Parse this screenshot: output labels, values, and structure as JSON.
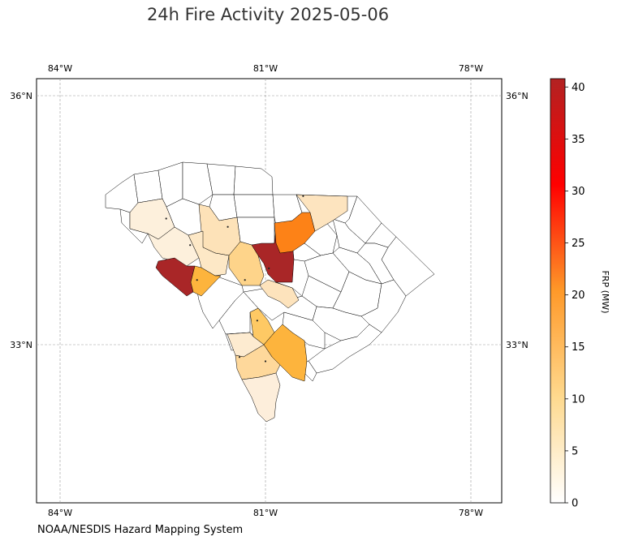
{
  "title": "24h Fire Activity 2025-05-06",
  "source": "NOAA/NESDIS Hazard Mapping System",
  "colorbar": {
    "label": "FRP (MW)",
    "ticks": [
      0,
      5,
      10,
      15,
      20,
      25,
      30,
      35,
      40
    ],
    "range": [
      0,
      40.8
    ],
    "stops": [
      "#ffffff",
      "#fed98e",
      "#fe9929",
      "#ff0000",
      "#b22222"
    ]
  },
  "map": {
    "lon_range": [
      -84.35,
      -77.5
    ],
    "lat_range": [
      31.0,
      36.15
    ],
    "lon_ticks": [
      "84°W",
      "81°W",
      "78°W"
    ],
    "lat_ticks": [
      "36°N",
      "33°N"
    ],
    "gridlines": true,
    "region": "South Carolina"
  },
  "chart_data": {
    "type": "choropleth",
    "value_label": "FRP (MW)",
    "counties": [
      {
        "id": "anderson",
        "frp": 1.5
      },
      {
        "id": "abbeville",
        "frp": 0.8
      },
      {
        "id": "laurens",
        "frp": 3.5
      },
      {
        "id": "greenwood",
        "frp": 2.5
      },
      {
        "id": "mccormick",
        "frp": 38
      },
      {
        "id": "edgefield",
        "frp": 11
      },
      {
        "id": "saluda",
        "frp": 6
      },
      {
        "id": "fairfield",
        "frp": 0
      },
      {
        "id": "lexington",
        "frp": 0
      },
      {
        "id": "richland",
        "frp": 40.8
      },
      {
        "id": "kershaw",
        "frp": 0
      },
      {
        "id": "lancaster",
        "frp": 17
      },
      {
        "id": "chesterfield",
        "frp": 2.2
      },
      {
        "id": "calhoun",
        "frp": 3.8
      },
      {
        "id": "orangeburn_north",
        "frp": 0
      },
      {
        "id": "bamberg",
        "frp": 8
      },
      {
        "id": "colleton",
        "frp": 11
      },
      {
        "id": "hampton",
        "frp": 2.2
      },
      {
        "id": "jasper",
        "frp": 4.5
      },
      {
        "id": "beaufort",
        "frp": 2.0
      }
    ],
    "fire_points": [
      {
        "lon": -82.45,
        "lat": 34.52
      },
      {
        "lon": -82.1,
        "lat": 34.2
      },
      {
        "lon": -81.55,
        "lat": 34.42
      },
      {
        "lon": -81.3,
        "lat": 33.78
      },
      {
        "lon": -80.95,
        "lat": 33.92
      },
      {
        "lon": -82.0,
        "lat": 33.78
      },
      {
        "lon": -80.45,
        "lat": 34.79
      },
      {
        "lon": -81.12,
        "lat": 33.29
      },
      {
        "lon": -81.0,
        "lat": 32.8
      },
      {
        "lon": -81.38,
        "lat": 32.85
      }
    ]
  }
}
